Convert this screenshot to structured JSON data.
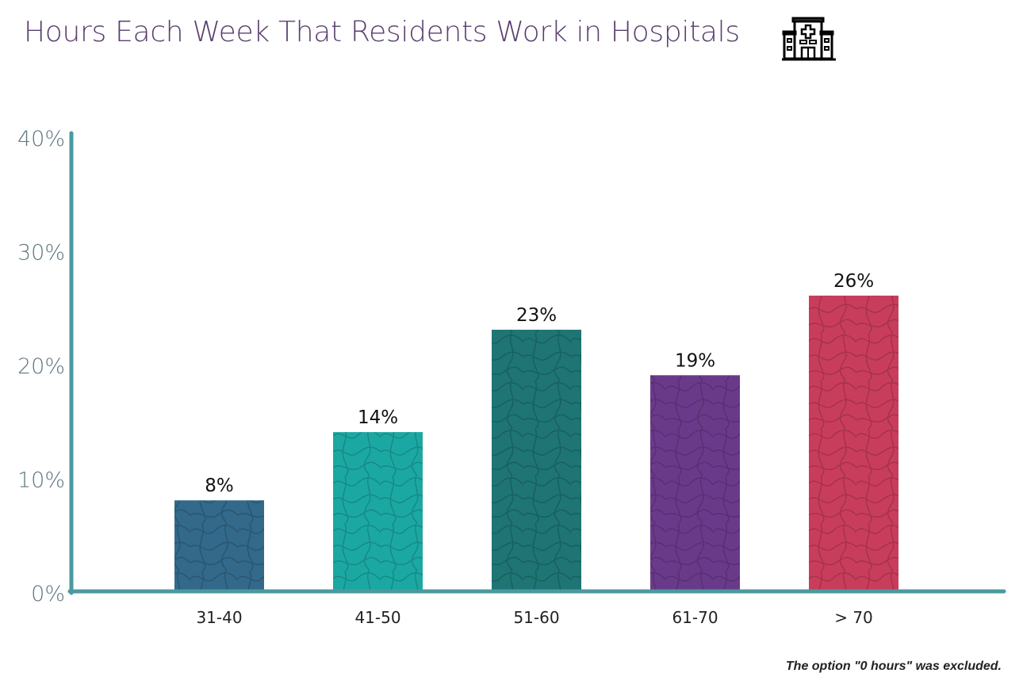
{
  "header": {
    "title": "Hours Each Week That Residents Work in Hospitals",
    "icon": "hospital-icon"
  },
  "footnote": "The option \"0 hours\" was excluded.",
  "chart_data": {
    "type": "bar",
    "categories": [
      "31-40",
      "41-50",
      "51-60",
      "61-70",
      "> 70"
    ],
    "values": [
      8,
      14,
      23,
      19,
      26
    ],
    "data_labels": [
      "8%",
      "14%",
      "23%",
      "19%",
      "26%"
    ],
    "colors": [
      "#33698a",
      "#1ba8a3",
      "#1e7574",
      "#6a3a8a",
      "#c93d5c"
    ],
    "ylim": [
      0,
      40
    ],
    "yticks": [
      0,
      10,
      20,
      30,
      40
    ],
    "ytick_labels": [
      "0%",
      "10%",
      "20%",
      "30%",
      "40%"
    ],
    "axis_color": "#4a9aa0",
    "grid": false,
    "title": "Hours Each Week That Residents Work in Hospitals",
    "xlabel": "",
    "ylabel": ""
  }
}
